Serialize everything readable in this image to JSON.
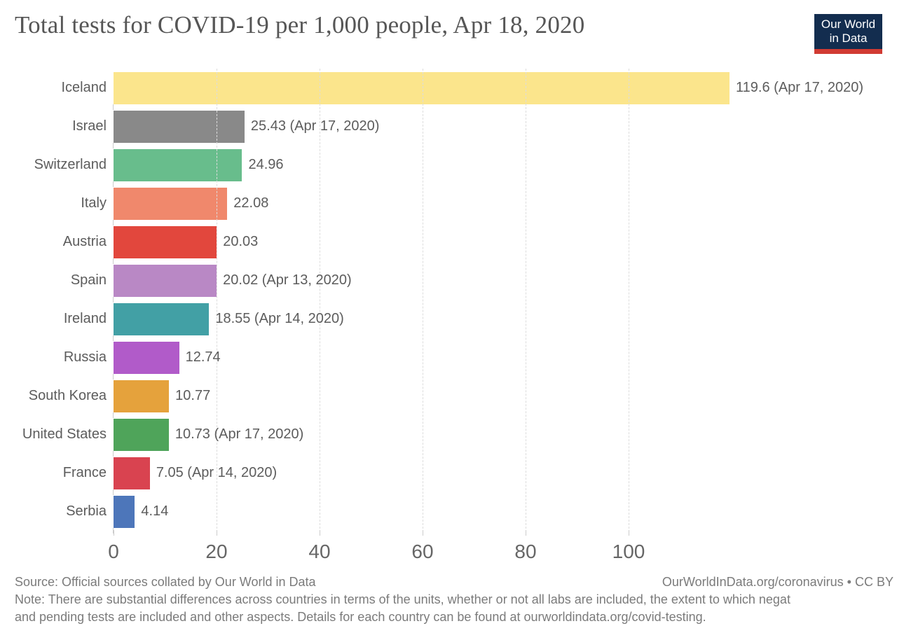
{
  "header": {
    "title": "Total tests for COVID-19 per 1,000 people, Apr 18, 2020",
    "logo": {
      "line1": "Our World",
      "line2": "in Data"
    }
  },
  "chart_data": {
    "type": "bar",
    "orientation": "horizontal",
    "title": "Total tests for COVID-19 per 1,000 people, Apr 18, 2020",
    "categories": [
      "Iceland",
      "Israel",
      "Switzerland",
      "Italy",
      "Austria",
      "Spain",
      "Ireland",
      "Russia",
      "South Korea",
      "United States",
      "France",
      "Serbia"
    ],
    "values": [
      119.6,
      25.43,
      24.96,
      22.08,
      20.03,
      20.02,
      18.55,
      12.74,
      10.77,
      10.73,
      7.05,
      4.14
    ],
    "value_labels": [
      "119.6 (Apr 17, 2020)",
      "25.43 (Apr 17, 2020)",
      "24.96",
      "22.08",
      "20.03",
      "20.02 (Apr 13, 2020)",
      "18.55 (Apr 14, 2020)",
      "12.74",
      "10.77",
      "10.73 (Apr 17, 2020)",
      "7.05 (Apr 14, 2020)",
      "4.14"
    ],
    "bar_colors": [
      "#fbe58c",
      "#898989",
      "#68bd8c",
      "#f0886c",
      "#e2473d",
      "#b988c5",
      "#42a0a5",
      "#b15bc9",
      "#e5a23c",
      "#4fa45a",
      "#d94350",
      "#4d76ba"
    ],
    "xticks": [
      0,
      20,
      40,
      60,
      80,
      100
    ],
    "xlim": [
      0,
      150
    ],
    "grid": "vertical-dashed",
    "legend": "none",
    "xlabel": "",
    "ylabel": ""
  },
  "footer": {
    "source": "Source: Official sources collated by Our World in Data",
    "attribution": "OurWorldInData.org/coronavirus • CC BY",
    "note_line1": "Note: There are substantial differences across countries in terms of the units, whether or not all labs are included, the extent to which negat",
    "note_line2": "and pending tests are included and other aspects. Details for each country can be found at ourworldindata.org/covid-testing."
  },
  "colors": {
    "logo_navy": "#132d4f",
    "logo_red": "#d13b33",
    "grid": "#dcdcdc",
    "label_text": "#5c5c5c",
    "axis_text": "#666666",
    "title_text": "#565656",
    "footer_text": "#7b7b7b"
  }
}
